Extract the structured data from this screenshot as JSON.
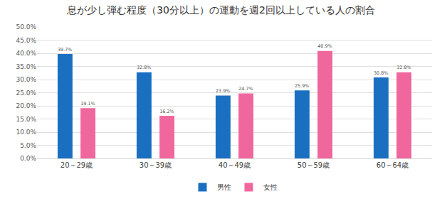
{
  "chart_data": {
    "type": "bar",
    "title": "息が少し弾む程度（30分以上）の運動を週2回以上している人の割合",
    "categories": [
      "20～29歳",
      "30～39歳",
      "40～49歳",
      "50～59歳",
      "60～64歳"
    ],
    "series": [
      {
        "name": "男性",
        "color": "#1a6fc0",
        "values": [
          39.7,
          32.8,
          23.9,
          25.9,
          30.8
        ],
        "value_labels": [
          "39.7%",
          "32.8%",
          "23.9%",
          "25.9%",
          "30.8%"
        ]
      },
      {
        "name": "女性",
        "color": "#f0679e",
        "values": [
          19.1,
          16.2,
          24.7,
          40.9,
          32.8
        ],
        "value_labels": [
          "19.1%",
          "16.2%",
          "24.7%",
          "40.9%",
          "32.8%"
        ]
      }
    ],
    "ylim": [
      0,
      50
    ],
    "yticks": [
      {
        "value": 0,
        "label": "0.0%"
      },
      {
        "value": 5,
        "label": "5.0%"
      },
      {
        "value": 10,
        "label": "10.0%"
      },
      {
        "value": 15,
        "label": "15.0%"
      },
      {
        "value": 20,
        "label": "20.0%"
      },
      {
        "value": 25,
        "label": "25.0%"
      },
      {
        "value": 30,
        "label": "30.0%"
      },
      {
        "value": 35,
        "label": "35.0%"
      },
      {
        "value": 40,
        "label": "40.0%"
      },
      {
        "value": 45,
        "label": "45.0%"
      },
      {
        "value": 50,
        "label": "50.0%"
      }
    ],
    "grid": true,
    "legend": "bottom",
    "data_labels": true
  }
}
